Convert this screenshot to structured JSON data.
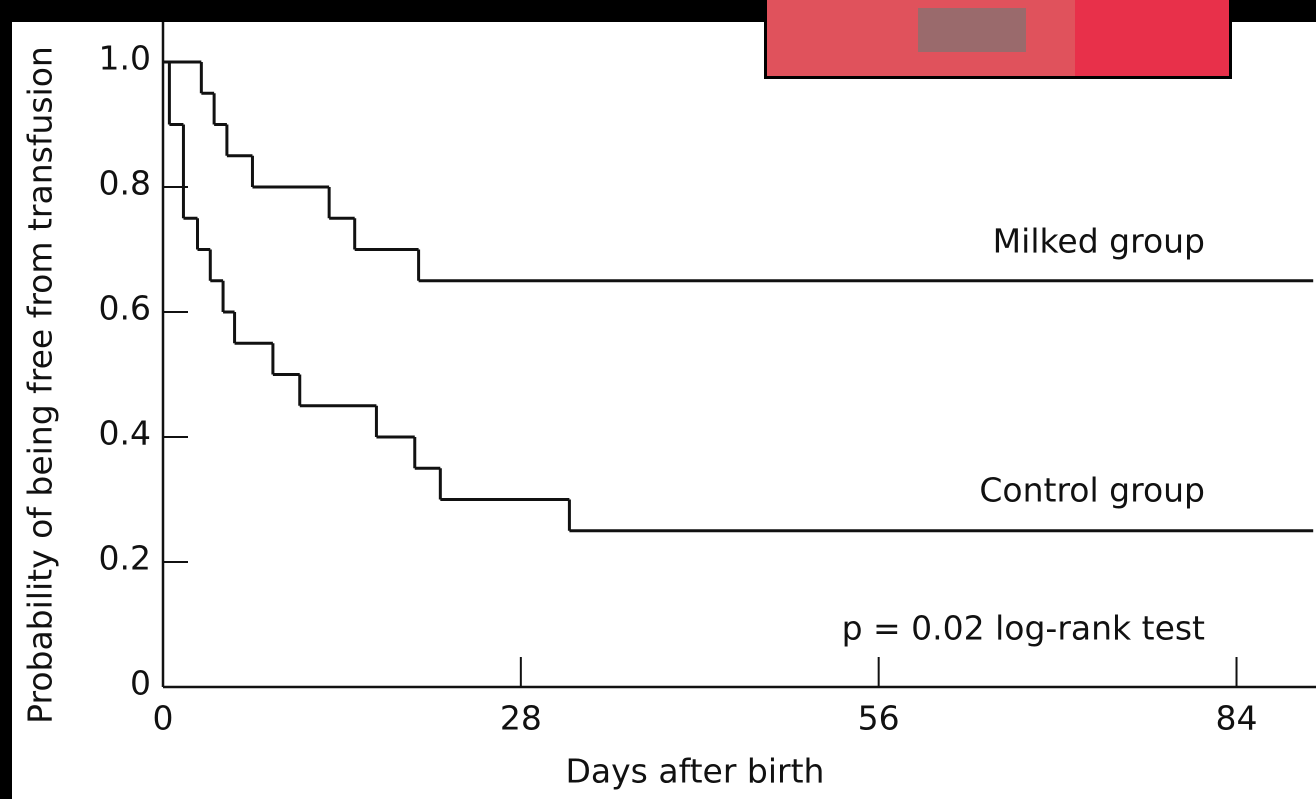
{
  "chart_data": {
    "type": "step",
    "xlabel": "Days after birth",
    "ylabel": "Probability of being free from transfusion",
    "annotation": "p = 0.02 log-rank test",
    "xlim": [
      0,
      90
    ],
    "ylim": [
      0,
      1
    ],
    "xticks": [
      0,
      28,
      56,
      84
    ],
    "yticks": [
      0,
      0.2,
      0.4,
      0.6,
      0.8,
      {
        "value": 1,
        "label": "1.0"
      }
    ],
    "series": [
      {
        "name": "Milked group",
        "color": "#111111",
        "x": [
          0,
          3,
          4,
          5,
          7,
          13,
          15,
          20
        ],
        "values": [
          1,
          0.95,
          0.9,
          0.85,
          0.8,
          0.75,
          0.7,
          0.65
        ]
      },
      {
        "name": "Control group",
        "color": "#111111",
        "x": [
          0,
          0.5,
          1.6,
          2.7,
          3.7,
          4.7,
          5.6,
          8.6,
          10.7,
          16.7,
          19.7,
          21.7,
          31.8
        ],
        "values": [
          1,
          0.9,
          0.75,
          0.7,
          0.65,
          0.6,
          0.55,
          0.5,
          0.45,
          0.4,
          0.35,
          0.3,
          0.25
        ]
      }
    ]
  }
}
